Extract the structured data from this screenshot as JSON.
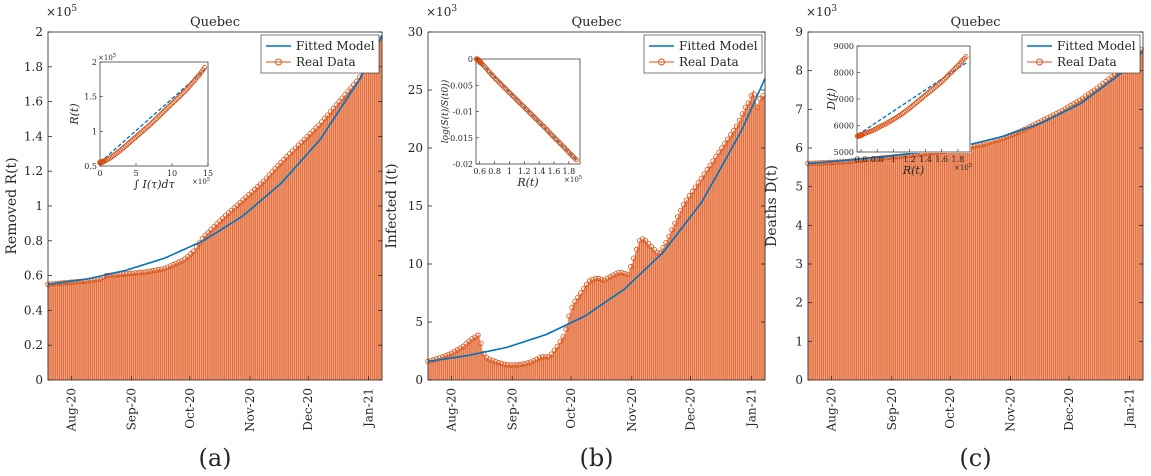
{
  "fitted_color": "#0072BD",
  "real_color": "#D95319",
  "fill_color": "#F2A482",
  "chart_data": [
    {
      "type": "bar",
      "title": "Quebec",
      "ylabel": "Removed R(t)",
      "caption": "(a)",
      "ylim": [
        0,
        2
      ],
      "yticks": [
        "0",
        "0.2",
        "0.4",
        "0.6",
        "0.8",
        "1",
        "1.2",
        "1.4",
        "1.6",
        "1.8",
        "2"
      ],
      "y_exponent": "×10^5",
      "xticks": [
        "Aug-20",
        "Sep-20",
        "Oct-20",
        "Nov-20",
        "Dec-20",
        "Jan-21"
      ],
      "legend": [
        "Fitted Model",
        "Real Data"
      ],
      "legend_position": "top-right",
      "real_data": {
        "x": [
          0,
          10,
          20,
          27,
          30,
          40,
          50,
          60,
          70,
          75,
          80,
          90,
          100,
          110,
          120,
          130,
          140,
          150,
          160,
          165,
          172
        ],
        "y": [
          0.55,
          0.56,
          0.57,
          0.58,
          0.6,
          0.61,
          0.62,
          0.64,
          0.69,
          0.74,
          0.82,
          0.93,
          1.03,
          1.13,
          1.25,
          1.36,
          1.47,
          1.6,
          1.73,
          1.84,
          1.98
        ]
      },
      "fitted_model": {
        "x": [
          0,
          20,
          40,
          60,
          80,
          100,
          120,
          140,
          160,
          172
        ],
        "y": [
          0.55,
          0.58,
          0.63,
          0.7,
          0.8,
          0.94,
          1.13,
          1.38,
          1.72,
          1.98
        ]
      },
      "inset": {
        "xlabel": "∫ I(τ)dτ",
        "ylabel": "R(t)",
        "xlim": [
          0,
          15
        ],
        "ylim": [
          0.5,
          2
        ],
        "xticks": [
          "0",
          "5",
          "10",
          "15"
        ],
        "yticks": [
          "0.5",
          "1",
          "1.5",
          "2"
        ],
        "x_exponent": "×10^5",
        "y_exponent": "×10^5",
        "real_data": {
          "x": [
            0,
            0.3,
            0.6,
            1,
            1.5,
            2,
            3,
            4,
            5,
            6,
            7,
            8,
            9,
            10,
            11,
            12,
            13,
            14,
            14.5
          ],
          "y": [
            0.55,
            0.56,
            0.57,
            0.59,
            0.62,
            0.66,
            0.74,
            0.83,
            0.92,
            1.01,
            1.1,
            1.2,
            1.3,
            1.4,
            1.5,
            1.6,
            1.72,
            1.84,
            1.92
          ]
        },
        "fitted_model": {
          "x": [
            0,
            15
          ],
          "y": [
            0.55,
            1.93
          ]
        }
      }
    },
    {
      "type": "bar",
      "title": "Quebec",
      "ylabel": "Infected I(t)",
      "caption": "(b)",
      "ylim": [
        0,
        30
      ],
      "yticks": [
        "0",
        "5",
        "10",
        "15",
        "20",
        "25",
        "30"
      ],
      "y_exponent": "×10^3",
      "xticks": [
        "Aug-20",
        "Sep-20",
        "Oct-20",
        "Nov-20",
        "Dec-20",
        "Jan-21"
      ],
      "legend": [
        "Fitted Model",
        "Real Data"
      ],
      "legend_position": "top-right",
      "real_data": {
        "x": [
          0,
          6,
          12,
          18,
          22,
          26,
          28,
          30,
          34,
          40,
          46,
          52,
          58,
          62,
          66,
          70,
          72,
          74,
          78,
          82,
          86,
          90,
          94,
          98,
          102,
          104,
          106,
          108,
          110,
          114,
          118,
          122,
          126,
          130,
          134,
          138,
          142,
          146,
          150,
          154,
          158,
          162,
          164,
          166,
          168,
          170,
          172
        ],
        "y": [
          1.6,
          1.9,
          2.3,
          2.9,
          3.5,
          3.9,
          2.4,
          1.9,
          1.6,
          1.3,
          1.3,
          1.5,
          2.0,
          2.0,
          2.9,
          4.0,
          5.5,
          6.5,
          7.5,
          8.5,
          8.8,
          8.6,
          9.0,
          9.3,
          9.1,
          10.0,
          11.0,
          12.0,
          12.2,
          11.5,
          10.8,
          12.0,
          13.5,
          15.0,
          16.0,
          17.0,
          18.0,
          19.0,
          20.0,
          21.0,
          22.0,
          23.5,
          24.0,
          25.0,
          23.5,
          24.5,
          24.5
        ]
      },
      "fitted_model": {
        "x": [
          0,
          20,
          40,
          60,
          80,
          100,
          120,
          140,
          160,
          172
        ],
        "y": [
          1.6,
          2.1,
          2.8,
          3.9,
          5.5,
          7.8,
          11.0,
          15.4,
          21.5,
          26.0
        ]
      },
      "inset": {
        "xlabel": "R(t)",
        "ylabel": "log(S(t)/S(t0))",
        "xlim": [
          0.55,
          1.95
        ],
        "ylim": [
          -0.02,
          0
        ],
        "xticks": [
          "0.6",
          "0.8",
          "1",
          "1.2",
          "1.4",
          "1.6",
          "1.8"
        ],
        "yticks": [
          "0",
          "-0.005",
          "-0.01",
          "-0.015",
          "-0.02"
        ],
        "x_exponent": "×10^5",
        "y_exponent": "",
        "real_data": {
          "x": [
            0.56,
            0.58,
            0.6,
            0.62,
            0.65,
            0.7,
            0.75,
            0.8,
            0.9,
            1.0,
            1.1,
            1.2,
            1.3,
            1.4,
            1.5,
            1.6,
            1.7,
            1.8,
            1.9
          ],
          "y": [
            0,
            -0.0002,
            -0.0005,
            -0.0008,
            -0.0012,
            -0.002,
            -0.0028,
            -0.0036,
            -0.005,
            -0.0064,
            -0.0078,
            -0.0092,
            -0.0106,
            -0.012,
            -0.0134,
            -0.0149,
            -0.0163,
            -0.0178,
            -0.0192
          ]
        },
        "fitted_model": {
          "x": [
            0.56,
            1.92
          ],
          "y": [
            0,
            -0.0195
          ]
        }
      }
    },
    {
      "type": "bar",
      "title": "Quebec",
      "ylabel": "Deaths D(t)",
      "caption": "(c)",
      "ylim": [
        0,
        9
      ],
      "yticks": [
        "0",
        "1",
        "2",
        "3",
        "4",
        "5",
        "6",
        "7",
        "8",
        "9"
      ],
      "y_exponent": "×10^3",
      "xticks": [
        "Aug-20",
        "Sep-20",
        "Oct-20",
        "Nov-20",
        "Dec-20",
        "Jan-21"
      ],
      "legend": [
        "Fitted Model",
        "Real Data"
      ],
      "legend_position": "top-right",
      "real_data": {
        "x": [
          0,
          10,
          20,
          30,
          40,
          50,
          60,
          70,
          80,
          90,
          100,
          110,
          120,
          130,
          140,
          150,
          160,
          165,
          172
        ],
        "y": [
          5.6,
          5.62,
          5.65,
          5.7,
          5.75,
          5.8,
          5.86,
          5.92,
          6.0,
          6.1,
          6.25,
          6.45,
          6.7,
          6.95,
          7.25,
          7.6,
          8.0,
          8.25,
          8.6
        ]
      },
      "fitted_model": {
        "x": [
          0,
          20,
          40,
          60,
          80,
          100,
          120,
          140,
          160,
          172
        ],
        "y": [
          5.6,
          5.68,
          5.78,
          5.9,
          6.05,
          6.3,
          6.65,
          7.15,
          7.9,
          8.5
        ]
      },
      "inset": {
        "xlabel": "R(t)",
        "ylabel": "D(t)",
        "xlim": [
          0.55,
          1.95
        ],
        "ylim": [
          5000,
          9000
        ],
        "xticks": [
          "0.6",
          "0.8",
          "1",
          "1.2",
          "1.4",
          "1.6",
          "1.8"
        ],
        "yticks": [
          "5000",
          "6000",
          "7000",
          "8000",
          "9000"
        ],
        "x_exponent": "×10^5",
        "y_exponent": "",
        "real_data": {
          "x": [
            0.56,
            0.58,
            0.6,
            0.62,
            0.65,
            0.7,
            0.75,
            0.8,
            0.9,
            1.0,
            1.1,
            1.2,
            1.3,
            1.4,
            1.5,
            1.6,
            1.7,
            1.8,
            1.9
          ],
          "y": [
            5600,
            5620,
            5640,
            5660,
            5700,
            5760,
            5820,
            5900,
            6050,
            6230,
            6420,
            6650,
            6900,
            7150,
            7400,
            7650,
            7950,
            8250,
            8600
          ]
        },
        "fitted_model": {
          "x": [
            0.56,
            1.92
          ],
          "y": [
            5650,
            8400
          ]
        }
      }
    }
  ]
}
